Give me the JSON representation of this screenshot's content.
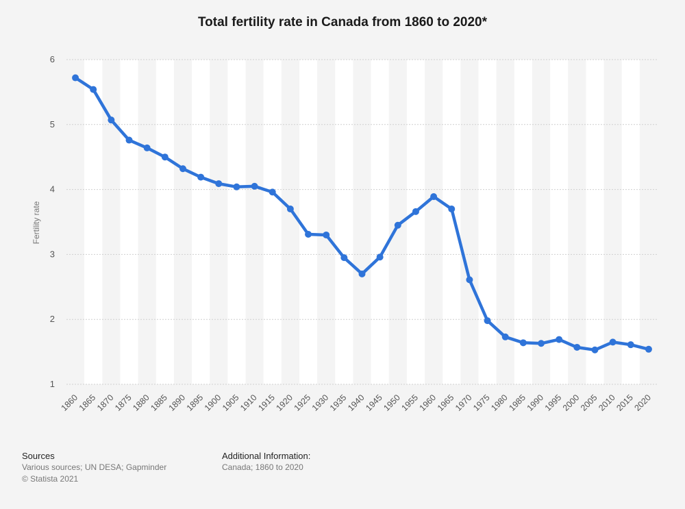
{
  "title": "Total fertility rate in Canada from 1860 to 2020*",
  "footer": {
    "sources_heading": "Sources",
    "sources_text": "Various sources; UN DESA; Gapminder",
    "copyright": "© Statista 2021",
    "additional_heading": "Additional Information:",
    "additional_text": "Canada; 1860 to 2020"
  },
  "chart_data": {
    "type": "line",
    "ylabel": "Fertility rate",
    "xlabel": "",
    "ylim": [
      1,
      6
    ],
    "yticks": [
      1,
      2,
      3,
      4,
      5,
      6
    ],
    "grid": true,
    "line_color": "#2f74d9",
    "x": [
      "1860",
      "1865",
      "1870",
      "1875",
      "1880",
      "1885",
      "1890",
      "1895",
      "1900",
      "1905",
      "1910",
      "1915",
      "1920",
      "1925",
      "1930",
      "1935",
      "1940",
      "1945",
      "1950",
      "1955",
      "1960",
      "1965",
      "1970",
      "1975",
      "1980",
      "1985",
      "1990",
      "1995",
      "2000",
      "2005",
      "2010",
      "2015",
      "2020"
    ],
    "values": [
      5.72,
      5.54,
      5.07,
      4.76,
      4.64,
      4.5,
      4.32,
      4.19,
      4.09,
      4.04,
      4.05,
      3.96,
      3.7,
      3.31,
      3.3,
      2.95,
      2.7,
      2.96,
      3.45,
      3.66,
      3.89,
      3.7,
      2.61,
      1.98,
      1.73,
      1.64,
      1.63,
      1.69,
      1.57,
      1.53,
      1.65,
      1.61,
      1.54
    ]
  }
}
